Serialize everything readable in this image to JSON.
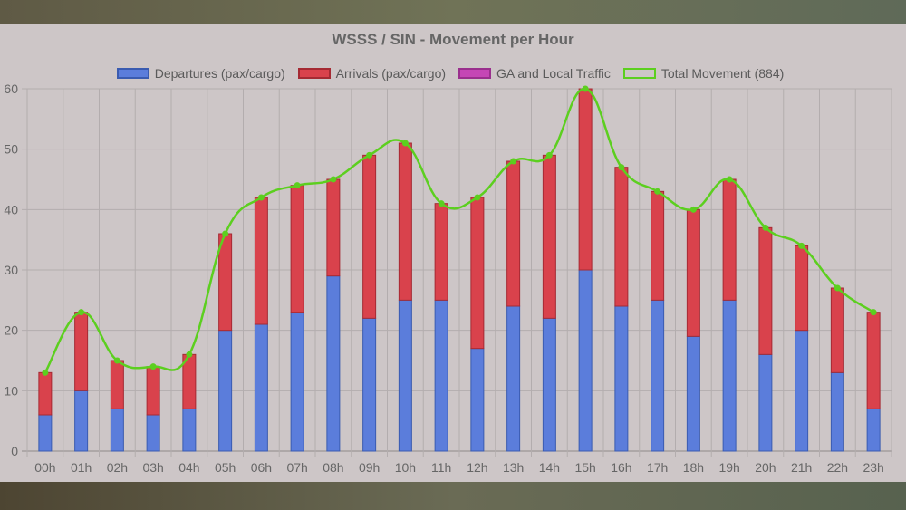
{
  "chart_data": {
    "type": "bar",
    "title": "WSSS / SIN - Movement per Hour",
    "categories": [
      "00h",
      "01h",
      "02h",
      "03h",
      "04h",
      "05h",
      "06h",
      "07h",
      "08h",
      "09h",
      "10h",
      "11h",
      "12h",
      "13h",
      "14h",
      "15h",
      "16h",
      "17h",
      "18h",
      "19h",
      "20h",
      "21h",
      "22h",
      "23h"
    ],
    "series": [
      {
        "name": "Departures (pax/cargo)",
        "type": "bar",
        "stack": "movement",
        "color": "#5b7ddb",
        "border": "#3a5bb0",
        "values": [
          6,
          10,
          7,
          6,
          7,
          20,
          21,
          23,
          29,
          22,
          25,
          25,
          17,
          24,
          22,
          30,
          24,
          25,
          19,
          25,
          16,
          20,
          13,
          7
        ]
      },
      {
        "name": "Arrivals (pax/cargo)",
        "type": "bar",
        "stack": "movement",
        "color": "#d9424c",
        "border": "#a52a33",
        "values": [
          7,
          13,
          8,
          8,
          9,
          16,
          21,
          21,
          16,
          27,
          26,
          16,
          25,
          24,
          27,
          30,
          23,
          18,
          21,
          20,
          21,
          14,
          14,
          16
        ]
      },
      {
        "name": "GA and Local Traffic",
        "type": "bar",
        "stack": "movement",
        "color": "#c546b5",
        "border": "#9a2f8d",
        "values": [
          0,
          0,
          0,
          0,
          0,
          0,
          0,
          0,
          0,
          0,
          0,
          0,
          0,
          0,
          0,
          0,
          0,
          0,
          0,
          0,
          0,
          0,
          0,
          0
        ]
      },
      {
        "name": "Total Movement (884)",
        "type": "line",
        "color": "#5ccf1f",
        "values": [
          13,
          23,
          15,
          14,
          16,
          36,
          42,
          44,
          45,
          49,
          51,
          41,
          42,
          48,
          49,
          60,
          47,
          43,
          40,
          45,
          37,
          34,
          27,
          23
        ]
      }
    ],
    "ylim": [
      0,
      60
    ],
    "yticks": [
      0,
      10,
      20,
      30,
      40,
      50,
      60
    ],
    "grid": true,
    "legend_position": "top"
  }
}
